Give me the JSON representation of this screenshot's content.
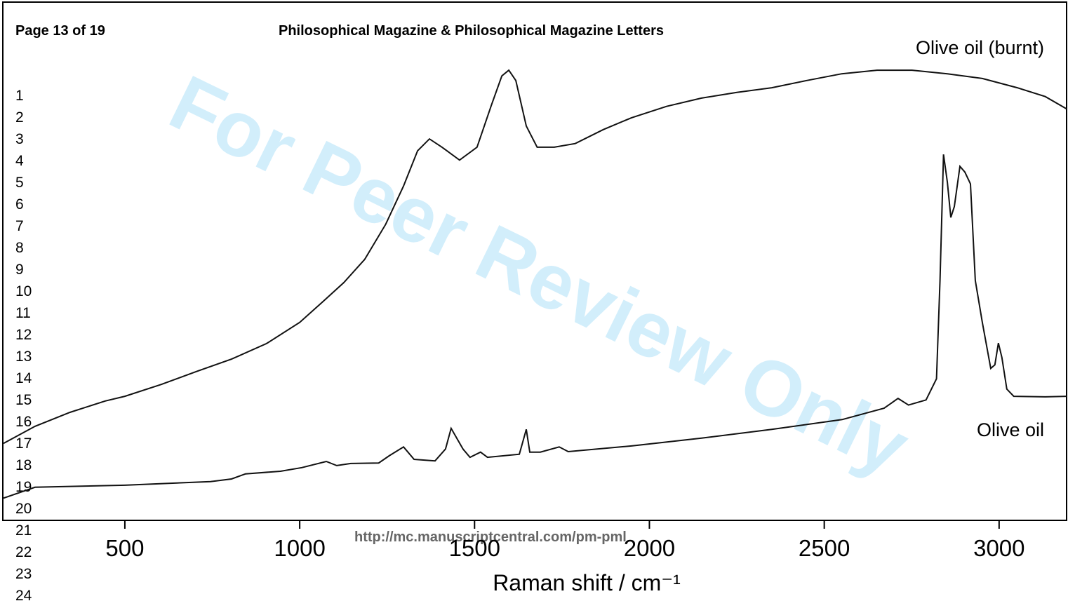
{
  "page": {
    "header_left": "Page 13 of 19",
    "header_title": "Philosophical Magazine & Philosophical Magazine Letters",
    "line_numbers": [
      "1",
      "2",
      "3",
      "4",
      "5",
      "6",
      "7",
      "8",
      "9",
      "10",
      "11",
      "12",
      "13",
      "14",
      "15",
      "16",
      "17",
      "18",
      "19",
      "20",
      "21",
      "22",
      "23",
      "24"
    ],
    "footer_url": "http://mc.manuscriptcentral.com/pm-pml",
    "watermark": "For Peer Review Only"
  },
  "chart_data": {
    "type": "line",
    "x_label": "Raman shift / cm⁻¹",
    "xlim": [
      153,
      3193
    ],
    "xticks": [
      500,
      1000,
      1500,
      2000,
      2500,
      3000
    ],
    "ylim": [
      0,
      100
    ],
    "series": [
      {
        "name": "Olive oil (burnt)",
        "color": "#111111",
        "x": [
          153,
          243,
          343,
          444,
          500,
          604,
          705,
          805,
          905,
          1000,
          1066,
          1126,
          1186,
          1246,
          1297,
          1337,
          1371,
          1407,
          1457,
          1507,
          1548,
          1578,
          1598,
          1618,
          1648,
          1679,
          1728,
          1788,
          1868,
          1949,
          2049,
          2149,
          2250,
          2350,
          2450,
          2550,
          2651,
          2751,
          2852,
          2952,
          3052,
          3132,
          3193
        ],
        "values": [
          14.9,
          18.2,
          20.9,
          23.1,
          24.0,
          26.3,
          28.8,
          31.2,
          34.2,
          38.3,
          42.3,
          46.0,
          50.5,
          57.3,
          64.7,
          71.5,
          73.8,
          72.2,
          69.7,
          72.2,
          80.3,
          86.0,
          87.1,
          85.1,
          76.3,
          72.2,
          72.2,
          72.9,
          75.6,
          77.9,
          80.1,
          81.7,
          82.8,
          83.7,
          85.1,
          86.4,
          87.1,
          87.1,
          86.4,
          85.5,
          83.7,
          82.0,
          79.6
        ]
      },
      {
        "name": "Olive oil",
        "color": "#111111",
        "x": [
          153,
          243,
          500,
          745,
          805,
          845,
          945,
          1006,
          1076,
          1106,
          1146,
          1226,
          1256,
          1297,
          1327,
          1387,
          1417,
          1433,
          1467,
          1487,
          1517,
          1537,
          1628,
          1648,
          1658,
          1688,
          1742,
          1768,
          1949,
          2149,
          2350,
          2551,
          2671,
          2711,
          2741,
          2791,
          2821,
          2831,
          2841,
          2852,
          2862,
          2872,
          2888,
          2902,
          2918,
          2932,
          2952,
          2976,
          2988,
          2998,
          3008,
          3022,
          3042,
          3132,
          3193
        ],
        "values": [
          4.3,
          6.4,
          6.8,
          7.5,
          8.0,
          9.0,
          9.5,
          10.2,
          11.4,
          10.6,
          11.0,
          11.1,
          12.5,
          14.2,
          11.8,
          11.5,
          13.8,
          17.8,
          13.8,
          12.2,
          13.2,
          12.2,
          12.8,
          17.6,
          13.2,
          13.2,
          14.2,
          13.3,
          14.4,
          15.9,
          17.6,
          19.5,
          21.7,
          23.6,
          22.3,
          23.3,
          27.4,
          46.4,
          70.8,
          65.4,
          58.6,
          60.7,
          68.5,
          67.4,
          65.1,
          46.4,
          38.3,
          29.4,
          30.1,
          34.3,
          31.5,
          25.4,
          24.0,
          23.9,
          24.0
        ]
      }
    ]
  }
}
